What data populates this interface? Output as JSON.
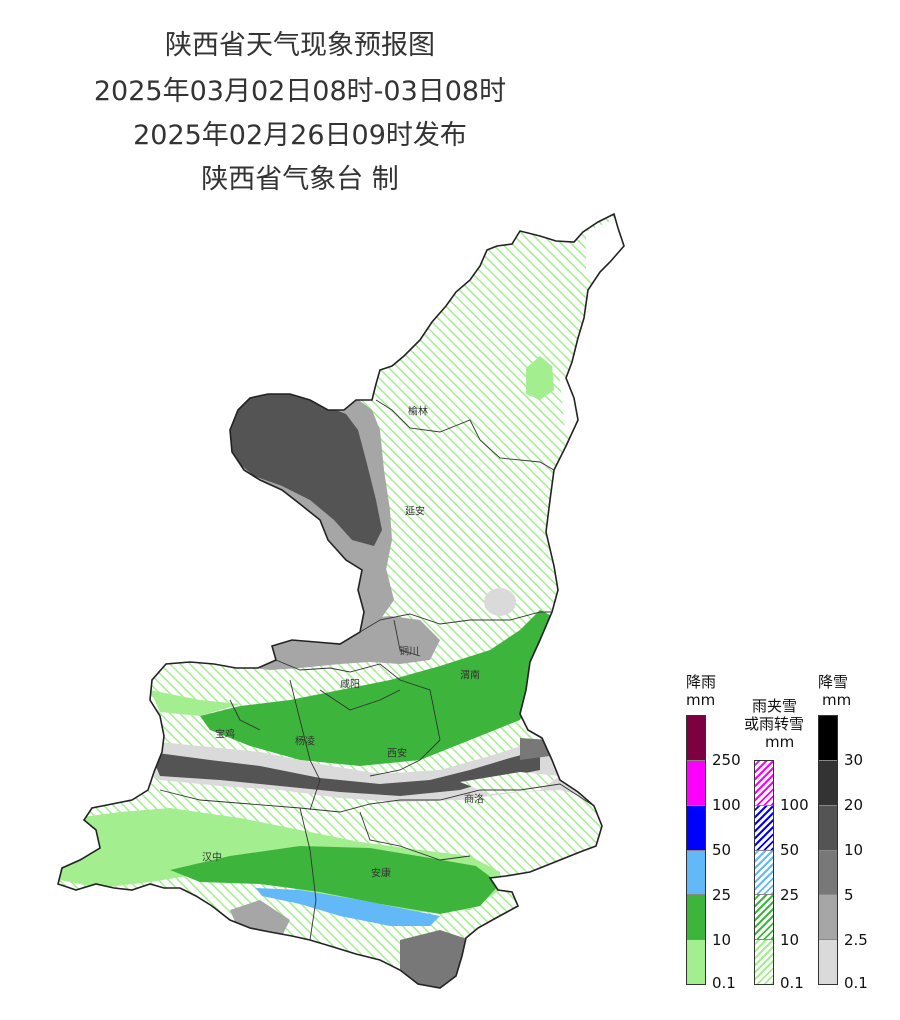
{
  "header": {
    "title": "陕西省天气现象预报图",
    "period": "2025年03月02日08时-03日08时",
    "issued": "2025年02月26日09时发布",
    "issuer": "陕西省气象台 制"
  },
  "cities": [
    {
      "id": "yulin",
      "name": "榆林"
    },
    {
      "id": "yanan",
      "name": "延安"
    },
    {
      "id": "tongchuan",
      "name": "铜川"
    },
    {
      "id": "weinan",
      "name": "渭南"
    },
    {
      "id": "xianyang",
      "name": "咸阳"
    },
    {
      "id": "baoji",
      "name": "宝鸡"
    },
    {
      "id": "yangling",
      "name": "杨凌"
    },
    {
      "id": "xian",
      "name": "西安"
    },
    {
      "id": "shangluo",
      "name": "商洛"
    },
    {
      "id": "hanzhong",
      "name": "汉中"
    },
    {
      "id": "ankang",
      "name": "安康"
    }
  ],
  "legends": {
    "rain": {
      "title_line1": "降雨",
      "title_line2": "mm",
      "ticks": [
        "0.1",
        "10",
        "25",
        "50",
        "100",
        "250"
      ],
      "colors": [
        "#a3ee8f",
        "#3db53d",
        "#63b8f8",
        "#0000fe",
        "#fd00fd",
        "#7f0040"
      ]
    },
    "sleet": {
      "title_line1": "雨夹雪",
      "title_line2": "或雨转雪",
      "title_line3": "mm",
      "ticks": [
        "0.1",
        "10",
        "25",
        "50",
        "100"
      ],
      "colors": [
        "#a3ee8f",
        "#3db53d",
        "#63b8f8",
        "#0000fe",
        "#fd00fd"
      ]
    },
    "snow": {
      "title_line1": "降雪",
      "title_line2": "mm",
      "ticks": [
        "0.1",
        "2.5",
        "5",
        "10",
        "20",
        "30"
      ],
      "colors": [
        "#dadada",
        "#a6a6a6",
        "#787878",
        "#545454",
        "#333333",
        "#000000"
      ]
    }
  }
}
